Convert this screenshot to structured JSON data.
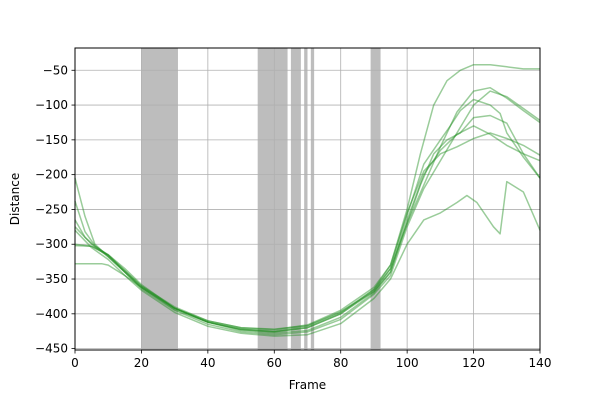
{
  "chart_data": {
    "type": "line",
    "title": "",
    "xlabel": "Frame",
    "ylabel": "Distance",
    "xlim": [
      0,
      140
    ],
    "ylim": [
      -452,
      -18
    ],
    "grid": true,
    "x_ticks": [
      0,
      20,
      40,
      60,
      80,
      100,
      120,
      140
    ],
    "y_ticks": [
      -450,
      -400,
      -350,
      -300,
      -250,
      -200,
      -150,
      -100,
      -50
    ],
    "line_color": "#1f8f1f",
    "line_opacity": 0.45,
    "shade_color": "#bdbdbd",
    "shaded_ranges": [
      [
        20,
        31
      ],
      [
        55,
        64
      ],
      [
        65,
        68
      ],
      [
        69,
        70
      ],
      [
        71,
        72
      ],
      [
        89,
        92
      ]
    ],
    "series": [
      {
        "x": [
          0,
          3,
          6,
          10,
          15,
          20,
          30,
          40,
          50,
          60,
          70,
          80,
          90,
          95,
          100,
          105,
          110,
          115,
          120,
          125,
          130,
          135,
          140
        ],
        "y": [
          -265,
          -290,
          -303,
          -315,
          -335,
          -358,
          -392,
          -412,
          -422,
          -425,
          -418,
          -398,
          -365,
          -330,
          -255,
          -195,
          -170,
          -160,
          -148,
          -140,
          -148,
          -158,
          -172
        ]
      },
      {
        "x": [
          0,
          3,
          6,
          10,
          15,
          20,
          30,
          40,
          50,
          60,
          70,
          80,
          90,
          95,
          100,
          104,
          108,
          112,
          116,
          120,
          125,
          130,
          135,
          140
        ],
        "y": [
          -205,
          -260,
          -300,
          -318,
          -340,
          -362,
          -394,
          -412,
          -422,
          -426,
          -420,
          -400,
          -368,
          -335,
          -270,
          -215,
          -170,
          -150,
          -140,
          -118,
          -115,
          -126,
          -170,
          -205
        ]
      },
      {
        "x": [
          0,
          3,
          6,
          10,
          15,
          20,
          30,
          40,
          50,
          60,
          70,
          80,
          90,
          95,
          100,
          104,
          108,
          112,
          116,
          120,
          125,
          130,
          135,
          140
        ],
        "y": [
          -238,
          -282,
          -302,
          -316,
          -338,
          -360,
          -392,
          -410,
          -420,
          -423,
          -416,
          -395,
          -362,
          -330,
          -250,
          -170,
          -100,
          -65,
          -50,
          -42,
          -42,
          -45,
          -48,
          -48
        ]
      },
      {
        "x": [
          0,
          5,
          10,
          15,
          20,
          30,
          40,
          50,
          60,
          70,
          80,
          90,
          95,
          100,
          105,
          110,
          115,
          120,
          125,
          130,
          135,
          140
        ],
        "y": [
          -300,
          -303,
          -315,
          -338,
          -360,
          -390,
          -410,
          -420,
          -422,
          -417,
          -397,
          -368,
          -340,
          -265,
          -200,
          -165,
          -142,
          -130,
          -142,
          -158,
          -170,
          -180
        ]
      },
      {
        "x": [
          0,
          5,
          10,
          15,
          20,
          30,
          40,
          50,
          60,
          70,
          80,
          90,
          95,
          100,
          105,
          110,
          113,
          116,
          120,
          125,
          128,
          130,
          135,
          140
        ],
        "y": [
          -302,
          -303,
          -316,
          -340,
          -362,
          -392,
          -412,
          -423,
          -426,
          -420,
          -400,
          -365,
          -335,
          -258,
          -185,
          -150,
          -130,
          -108,
          -92,
          -100,
          -112,
          -140,
          -175,
          -205
        ]
      },
      {
        "x": [
          0,
          5,
          8,
          10,
          15,
          20,
          30,
          40,
          50,
          60,
          70,
          80,
          90,
          95,
          100,
          105,
          110,
          115,
          120,
          125,
          130,
          135,
          140
        ],
        "y": [
          -328,
          -328,
          -328,
          -330,
          -345,
          -362,
          -392,
          -412,
          -424,
          -428,
          -424,
          -405,
          -370,
          -340,
          -270,
          -215,
          -160,
          -110,
          -80,
          -75,
          -90,
          -108,
          -125
        ]
      },
      {
        "x": [
          0,
          5,
          10,
          15,
          20,
          30,
          40,
          50,
          60,
          70,
          80,
          90,
          95,
          100,
          105,
          110,
          115,
          120,
          125,
          130,
          135,
          140
        ],
        "y": [
          -275,
          -300,
          -318,
          -340,
          -364,
          -395,
          -415,
          -426,
          -430,
          -426,
          -408,
          -372,
          -345,
          -275,
          -220,
          -180,
          -140,
          -100,
          -80,
          -88,
          -105,
          -122
        ]
      },
      {
        "x": [
          0,
          5,
          10,
          15,
          20,
          30,
          40,
          50,
          60,
          70,
          80,
          90,
          95,
          100,
          105,
          110,
          115,
          118,
          121,
          126,
          128,
          130,
          135,
          140
        ],
        "y": [
          -280,
          -305,
          -322,
          -345,
          -366,
          -398,
          -418,
          -428,
          -432,
          -430,
          -414,
          -378,
          -350,
          -300,
          -265,
          -255,
          -240,
          -230,
          -240,
          -275,
          -285,
          -210,
          -225,
          -280
        ]
      }
    ]
  }
}
